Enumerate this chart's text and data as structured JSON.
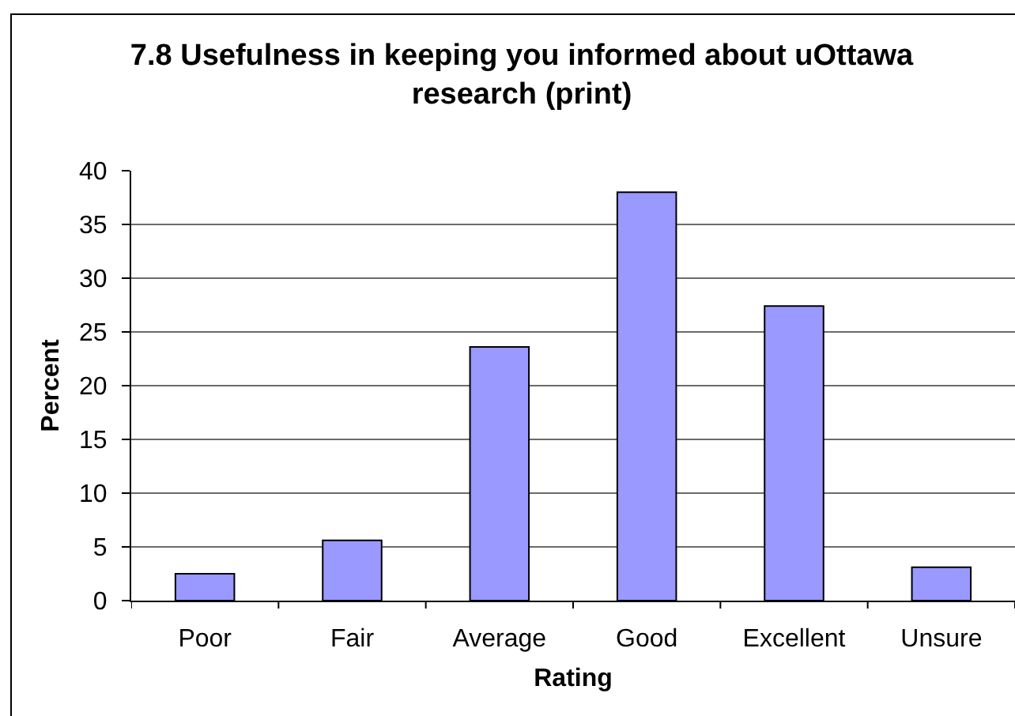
{
  "chart_data": {
    "type": "bar",
    "title": "7.8 Usefulness in keeping you informed about uOttawa research (print)",
    "xlabel": "Rating",
    "ylabel": "Percent",
    "categories": [
      "Poor",
      "Fair",
      "Average",
      "Good",
      "Excellent",
      "Unsure"
    ],
    "values": [
      2.5,
      5.6,
      23.6,
      38.0,
      27.4,
      3.1
    ],
    "color": "#9999ff",
    "ylim": [
      0,
      40
    ],
    "yticks": [
      0,
      5,
      10,
      15,
      20,
      25,
      30,
      35,
      40
    ],
    "grid": "y"
  }
}
